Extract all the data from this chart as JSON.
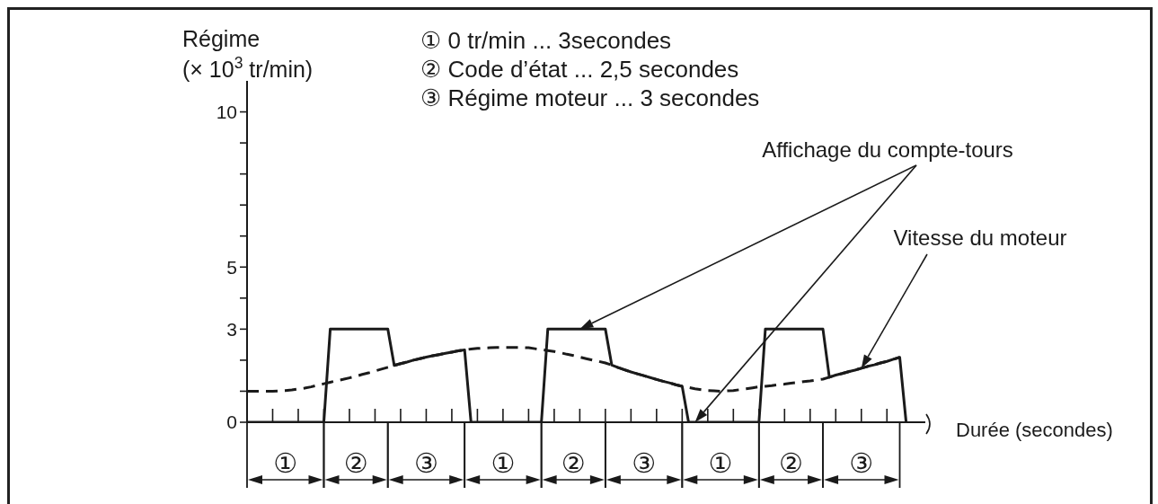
{
  "chart_data": {
    "type": "line",
    "xlabel": "Durée (secondes)",
    "ylabel": "Régime\n(× 10$^{3}$ tr/min)",
    "annotations": [
      "① 0 tr/min ... 3secondes",
      "② Code d’état ... 2,5 secondes",
      "③ Régime moteur ... 3 secondes",
      "①",
      "②",
      "③",
      "①",
      "②",
      "③",
      "①",
      "②",
      "③"
    ],
    "categories": [
      null,
      null,
      null,
      null,
      null,
      null,
      null,
      null,
      null,
      null,
      null,
      null,
      null,
      null,
      null,
      null,
      null,
      null,
      null,
      null,
      null,
      null,
      null,
      null,
      null,
      null,
      null,
      null,
      null,
      null,
      null,
      null,
      null,
      null,
      null,
      null,
      null,
      null,
      null,
      null,
      null,
      null,
      null,
      null,
      null,
      null,
      null,
      null,
      null,
      null,
      null,
      null,
      null,
      null,
      null,
      null,
      null,
      null,
      null,
      null,
      null,
      null,
      null,
      null,
      null,
      null,
      null,
      null,
      null,
      null,
      null,
      null,
      null,
      null,
      null,
      null,
      null,
      null,
      null,
      null,
      null,
      null,
      null,
      null,
      null,
      null,
      null,
      null,
      null,
      null,
      null,
      null,
      null,
      null,
      null,
      null,
      null,
      null,
      null,
      null,
      null,
      null,
      null,
      null
    ],
    "ylim": [
      0,
      11
    ],
    "yticks": [
      0,
      {
        "value": 1,
        "label": null
      },
      {
        "value": 2,
        "label": null
      },
      3,
      {
        "value": 4,
        "label": null
      },
      5,
      {
        "value": 6,
        "label": null
      },
      {
        "value": 7,
        "label": null
      },
      {
        "value": 8,
        "label": null
      },
      {
        "value": 9,
        "label": null
      },
      10
    ],
    "tick_labels": "y",
    "marker": "none",
    "series": [
      {
        "name": "Affichage du compte-tours",
        "type": "line",
        "color": "#1a1a1a",
        "line_style": "solid",
        "values": [
          0,
          0,
          0,
          0,
          0,
          0,
          0,
          0,
          0,
          0,
          0,
          0,
          0,
          3,
          3,
          3,
          3,
          3,
          3,
          3,
          3,
          3,
          3,
          1.83,
          1.89,
          1.94,
          2.0,
          2.05,
          2.1,
          2.14,
          2.18,
          2.22,
          2.26,
          2.3,
          2.33,
          0,
          0,
          0,
          0,
          0,
          0,
          0,
          0,
          0,
          0,
          0,
          0,
          3,
          3,
          3,
          3,
          3,
          3,
          3,
          3,
          3,
          3,
          1.84,
          1.76,
          1.69,
          1.62,
          1.56,
          1.5,
          1.44,
          1.38,
          1.32,
          1.27,
          1.21,
          1.16,
          0,
          0,
          0,
          0,
          0,
          0,
          0,
          0,
          0,
          0,
          0,
          0,
          3,
          3,
          3,
          3,
          3,
          3,
          3,
          3,
          3,
          3,
          1.45,
          1.52,
          1.57,
          1.63,
          1.68,
          1.74,
          1.8,
          1.85,
          1.91,
          1.96,
          2.03,
          2.09,
          0
        ]
      },
      {
        "name": "Vitesse du moteur",
        "type": "line",
        "color": "#1a1a1a",
        "line_style": "dashed",
        "values": [
          1.0,
          1.0,
          1.0,
          1.0,
          1.0,
          1.01,
          1.02,
          1.04,
          1.07,
          1.1,
          1.14,
          1.19,
          1.24,
          1.29,
          1.34,
          1.38,
          1.43,
          1.48,
          1.54,
          1.59,
          1.65,
          1.71,
          1.77,
          1.83,
          1.89,
          1.94,
          2.0,
          2.05,
          2.1,
          2.14,
          2.18,
          2.22,
          2.26,
          2.3,
          2.33,
          2.36,
          2.38,
          2.39,
          2.4,
          2.41,
          2.41,
          2.41,
          2.41,
          2.41,
          2.4,
          2.37,
          2.34,
          2.31,
          2.28,
          2.24,
          2.19,
          2.15,
          2.1,
          2.05,
          2.0,
          1.96,
          1.91,
          1.84,
          1.76,
          1.69,
          1.62,
          1.56,
          1.5,
          1.44,
          1.38,
          1.32,
          1.27,
          1.21,
          1.16,
          1.12,
          1.08,
          1.05,
          1.02,
          1.01,
          1.0,
          1.01,
          1.02,
          1.05,
          1.08,
          1.11,
          1.14,
          1.16,
          1.18,
          1.21,
          1.23,
          1.26,
          1.28,
          1.31,
          1.33,
          1.36,
          1.39,
          1.45,
          1.52,
          1.57,
          1.63,
          1.68,
          1.74,
          1.8,
          1.85,
          1.91,
          1.96,
          2.03,
          2.09,
          null
        ]
      }
    ]
  }
}
